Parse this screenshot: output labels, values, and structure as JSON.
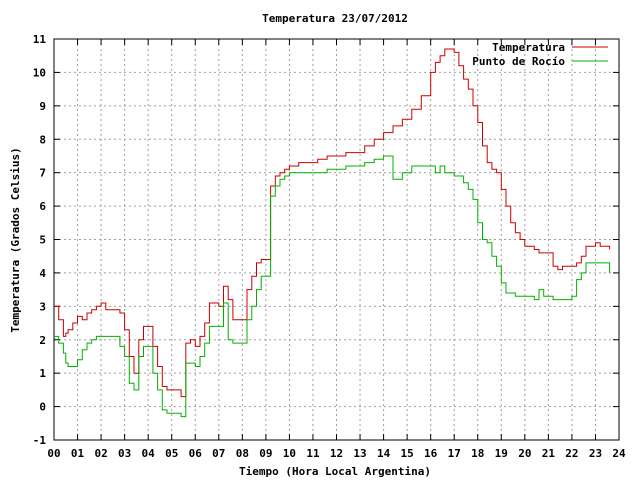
{
  "chart_data": {
    "type": "line",
    "title": "Temperatura 23/07/2012",
    "xlabel": "Tiempo (Hora Local Argentina)",
    "ylabel": "Temperatura (Grados Celsius)",
    "xlim": [
      0,
      24
    ],
    "ylim": [
      -1,
      11
    ],
    "x_ticks": [
      "00",
      "01",
      "02",
      "03",
      "04",
      "05",
      "06",
      "07",
      "08",
      "09",
      "10",
      "11",
      "12",
      "13",
      "14",
      "15",
      "16",
      "17",
      "18",
      "19",
      "20",
      "21",
      "22",
      "23",
      "24"
    ],
    "y_ticks": [
      "-1",
      "0",
      "1",
      "2",
      "3",
      "4",
      "5",
      "6",
      "7",
      "8",
      "9",
      "10",
      "11"
    ],
    "grid": true,
    "legend_position": "top-right",
    "colors": {
      "temperatura": "#cc0000",
      "rocio": "#00b000",
      "grid": "#a0a0a0"
    },
    "series": [
      {
        "name": "Temperatura",
        "x": [
          0,
          0.2,
          0.4,
          0.5,
          0.6,
          0.8,
          1.0,
          1.2,
          1.4,
          1.6,
          1.8,
          2.0,
          2.2,
          2.4,
          2.6,
          2.8,
          3.0,
          3.2,
          3.4,
          3.6,
          3.8,
          4.0,
          4.2,
          4.4,
          4.6,
          4.8,
          5.0,
          5.2,
          5.4,
          5.6,
          5.8,
          6.0,
          6.2,
          6.4,
          6.6,
          6.8,
          7.0,
          7.2,
          7.4,
          7.6,
          7.8,
          8.0,
          8.2,
          8.4,
          8.6,
          8.8,
          9.0,
          9.2,
          9.4,
          9.6,
          9.8,
          10.0,
          10.4,
          10.8,
          11.2,
          11.6,
          12.0,
          12.4,
          12.8,
          13.2,
          13.6,
          14.0,
          14.4,
          14.8,
          15.2,
          15.6,
          16.0,
          16.2,
          16.4,
          16.6,
          16.8,
          17.0,
          17.2,
          17.4,
          17.6,
          17.8,
          18.0,
          18.2,
          18.4,
          18.6,
          18.8,
          19.0,
          19.2,
          19.4,
          19.6,
          19.8,
          20.0,
          20.2,
          20.4,
          20.6,
          20.8,
          21.0,
          21.2,
          21.4,
          21.6,
          21.8,
          22.0,
          22.2,
          22.4,
          22.6,
          22.8,
          23.0,
          23.2,
          23.4,
          23.6
        ],
        "values": [
          3.0,
          2.6,
          2.1,
          2.2,
          2.3,
          2.5,
          2.7,
          2.6,
          2.8,
          2.9,
          3.0,
          3.1,
          2.9,
          2.9,
          2.9,
          2.8,
          2.3,
          1.5,
          1.0,
          2.0,
          2.4,
          2.4,
          1.8,
          1.2,
          0.6,
          0.5,
          0.5,
          0.5,
          0.3,
          1.9,
          2.0,
          1.8,
          2.1,
          2.5,
          3.1,
          3.1,
          3.0,
          3.6,
          3.2,
          2.6,
          2.6,
          2.6,
          3.5,
          3.9,
          4.3,
          4.4,
          4.4,
          6.6,
          6.9,
          7.0,
          7.1,
          7.2,
          7.3,
          7.3,
          7.4,
          7.5,
          7.5,
          7.6,
          7.6,
          7.8,
          8.0,
          8.2,
          8.4,
          8.6,
          8.9,
          9.3,
          10.0,
          10.3,
          10.5,
          10.7,
          10.7,
          10.6,
          10.2,
          9.8,
          9.5,
          9.0,
          8.5,
          7.8,
          7.3,
          7.1,
          7.0,
          6.5,
          6.0,
          5.5,
          5.2,
          5.0,
          4.8,
          4.8,
          4.7,
          4.6,
          4.6,
          4.6,
          4.2,
          4.1,
          4.2,
          4.2,
          4.2,
          4.3,
          4.5,
          4.8,
          4.8,
          4.9,
          4.8,
          4.8,
          4.7
        ]
      },
      {
        "name": "Punto de Rocío",
        "x": [
          0,
          0.2,
          0.4,
          0.5,
          0.6,
          0.8,
          1.0,
          1.2,
          1.4,
          1.6,
          1.8,
          2.0,
          2.2,
          2.4,
          2.6,
          2.8,
          3.0,
          3.2,
          3.4,
          3.6,
          3.8,
          4.0,
          4.2,
          4.4,
          4.6,
          4.8,
          5.0,
          5.2,
          5.4,
          5.6,
          5.8,
          6.0,
          6.2,
          6.4,
          6.6,
          6.8,
          7.0,
          7.2,
          7.4,
          7.6,
          7.8,
          8.0,
          8.2,
          8.4,
          8.6,
          8.8,
          9.0,
          9.2,
          9.4,
          9.6,
          9.8,
          10.0,
          10.4,
          10.8,
          11.2,
          11.6,
          12.0,
          12.4,
          12.8,
          13.2,
          13.6,
          14.0,
          14.4,
          14.8,
          15.2,
          15.6,
          16.0,
          16.2,
          16.4,
          16.6,
          16.8,
          17.0,
          17.2,
          17.4,
          17.6,
          17.8,
          18.0,
          18.2,
          18.4,
          18.6,
          18.8,
          19.0,
          19.2,
          19.4,
          19.6,
          19.8,
          20.0,
          20.2,
          20.4,
          20.6,
          20.8,
          21.0,
          21.2,
          21.4,
          21.6,
          21.8,
          22.0,
          22.2,
          22.4,
          22.6,
          22.8,
          23.0,
          23.2,
          23.4,
          23.6
        ],
        "values": [
          2.1,
          1.9,
          1.6,
          1.3,
          1.2,
          1.2,
          1.4,
          1.7,
          1.9,
          2.0,
          2.1,
          2.1,
          2.1,
          2.1,
          2.1,
          1.8,
          1.5,
          0.7,
          0.5,
          1.5,
          1.8,
          1.8,
          1.0,
          0.5,
          -0.1,
          -0.2,
          -0.2,
          -0.2,
          -0.3,
          1.3,
          1.3,
          1.2,
          1.5,
          1.9,
          2.4,
          2.4,
          2.4,
          3.1,
          2.0,
          1.9,
          1.9,
          1.9,
          2.6,
          3.0,
          3.5,
          3.9,
          3.9,
          6.3,
          6.6,
          6.8,
          6.9,
          7.0,
          7.0,
          7.0,
          7.0,
          7.1,
          7.1,
          7.2,
          7.2,
          7.3,
          7.4,
          7.5,
          6.8,
          7.0,
          7.2,
          7.2,
          7.2,
          7.0,
          7.2,
          7.0,
          7.0,
          6.9,
          6.9,
          6.7,
          6.5,
          6.2,
          5.5,
          5.0,
          4.9,
          4.5,
          4.2,
          3.7,
          3.4,
          3.4,
          3.3,
          3.3,
          3.3,
          3.3,
          3.2,
          3.5,
          3.3,
          3.3,
          3.2,
          3.2,
          3.2,
          3.2,
          3.3,
          3.8,
          4.0,
          4.3,
          4.3,
          4.3,
          4.3,
          4.3,
          4.0
        ]
      }
    ]
  }
}
